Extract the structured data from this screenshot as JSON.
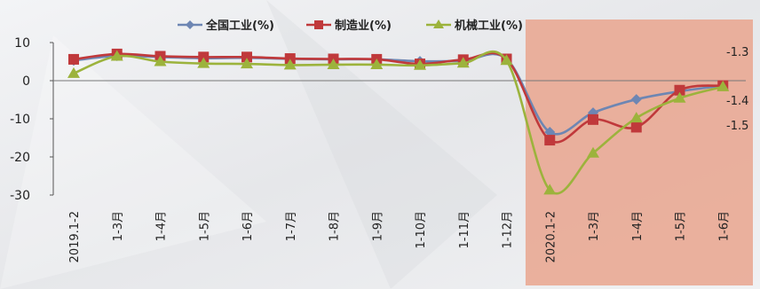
{
  "chart_data": {
    "type": "line",
    "categories": [
      "2019.1-2",
      "1-3月",
      "1-4月",
      "1-5月",
      "1-6月",
      "1-7月",
      "1-8月",
      "1-9月",
      "1-10月",
      "1-11月",
      "1-12月",
      "2020.1-2",
      "1-3月",
      "1-4月",
      "1-5月",
      "1-6月"
    ],
    "series": [
      {
        "name": "全国工业(%)",
        "color": "#6d86b3",
        "marker": "diamond",
        "values": [
          5.3,
          6.5,
          6.2,
          5.9,
          6.0,
          5.7,
          5.6,
          5.6,
          5.1,
          5.2,
          5.7,
          -13.5,
          -8.4,
          -4.9,
          -2.8,
          -1.3
        ]
      },
      {
        "name": "制造业(%)",
        "color": "#c0393b",
        "marker": "square",
        "values": [
          5.6,
          7.0,
          6.4,
          6.2,
          6.2,
          5.8,
          5.7,
          5.6,
          4.4,
          5.5,
          5.7,
          -15.6,
          -10.2,
          -12.2,
          -2.5,
          -1.3
        ]
      },
      {
        "name": "机械工业(%)",
        "color": "#9cb33c",
        "marker": "triangle",
        "values": [
          1.9,
          6.4,
          5.0,
          4.5,
          4.4,
          4.1,
          4.2,
          4.2,
          4.0,
          4.6,
          5.3,
          -28.7,
          -19.0,
          -9.8,
          -4.6,
          -1.6
        ]
      }
    ],
    "y_ticks": [
      "10",
      "0",
      "-10",
      "-20",
      "-30"
    ],
    "ylim": [
      -30,
      10
    ],
    "right_axis_labels": [
      "-1.3",
      "-1.4",
      "-1.5"
    ],
    "grid": false,
    "legend": "top",
    "highlight": {
      "from_category_index": 11,
      "color": "#e9a58e"
    }
  }
}
